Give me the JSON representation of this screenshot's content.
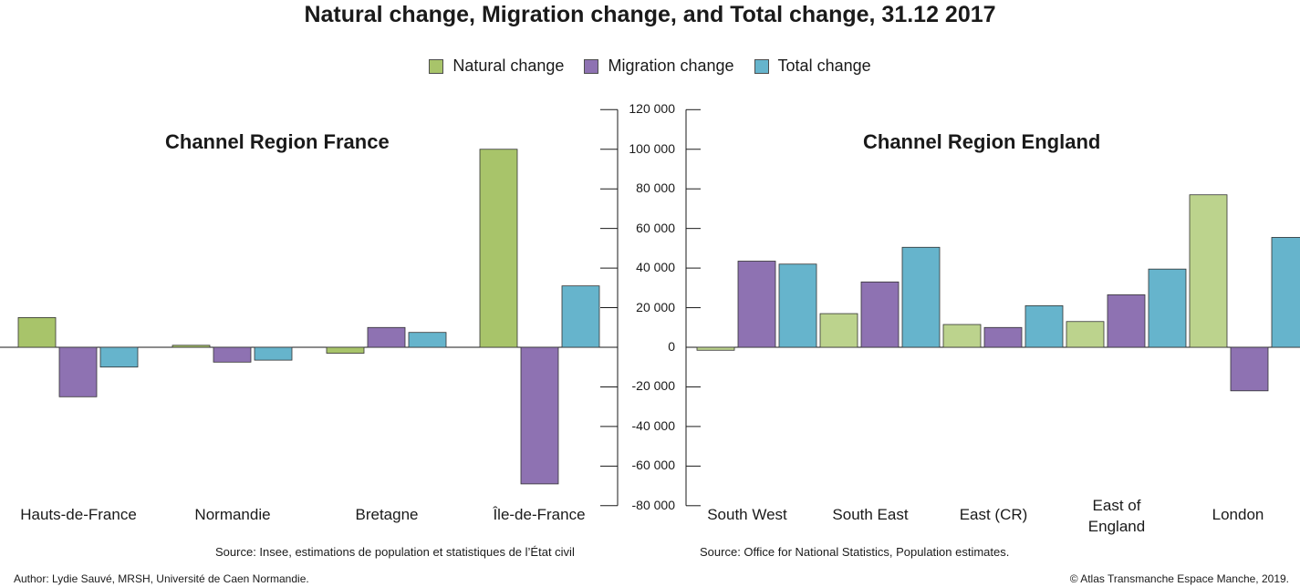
{
  "chart_data": {
    "type": "bar",
    "title": "Natural change, Migration change, and Total change, 31.12 2017",
    "legend": {
      "placement": "top-center",
      "entries": [
        {
          "name": "Natural change",
          "color": "#a8c46a"
        },
        {
          "name": "Migration change",
          "color": "#8e72b2"
        },
        {
          "name": "Total change",
          "color": "#66b4cc"
        }
      ]
    },
    "ylim": [
      -80000,
      120000
    ],
    "yticks": [
      120000,
      100000,
      80000,
      60000,
      40000,
      20000,
      0,
      -20000,
      -40000,
      -60000,
      -80000
    ],
    "ytick_labels": [
      "120 000",
      "100 000",
      "80 000",
      "60 000",
      "40 000",
      "20 000",
      "0",
      "-20 000",
      "-40 000",
      "-60 000",
      "-80 000"
    ],
    "grid": false,
    "panels": [
      {
        "title": "Channel Region France",
        "categories": [
          "Hauts-de-France",
          "Normandie",
          "Bretagne",
          "Île-de-France"
        ],
        "series": [
          {
            "name": "Natural change",
            "values": [
              15000,
              1000,
              -3000,
              100000
            ]
          },
          {
            "name": "Migration change",
            "values": [
              -25000,
              -7500,
              10000,
              -69000
            ]
          },
          {
            "name": "Total change",
            "values": [
              -10000,
              -6500,
              7500,
              31000
            ]
          }
        ],
        "source": "Source: Insee, estimations de population et statistiques de l’État civil"
      },
      {
        "title": "Channel Region England",
        "categories": [
          "South West",
          "South East",
          "East (CR)",
          "East of England",
          "London"
        ],
        "category_lines": [
          [
            "South West"
          ],
          [
            "South East"
          ],
          [
            "East (CR)"
          ],
          [
            "East of",
            "England"
          ],
          [
            "London"
          ]
        ],
        "series": [
          {
            "name": "Natural change",
            "values": [
              -1500,
              17000,
              11500,
              13000,
              77000
            ]
          },
          {
            "name": "Migration change",
            "values": [
              43500,
              33000,
              10000,
              26500,
              -22000
            ]
          },
          {
            "name": "Total change",
            "values": [
              42000,
              50500,
              21000,
              39500,
              55500
            ]
          }
        ],
        "source": "Source: Office for National Statistics, Population estimates."
      }
    ]
  },
  "colors": {
    "france_natural": "#a8c46a",
    "england_natural": "#bcd38d",
    "migration": "#8e72b2",
    "total": "#66b4cc"
  },
  "footer": {
    "author": "Author: Lydie Sauvé, MRSH, Université de Caen Normandie.",
    "copyright": "© Atlas Transmanche Espace Manche, 2019."
  }
}
